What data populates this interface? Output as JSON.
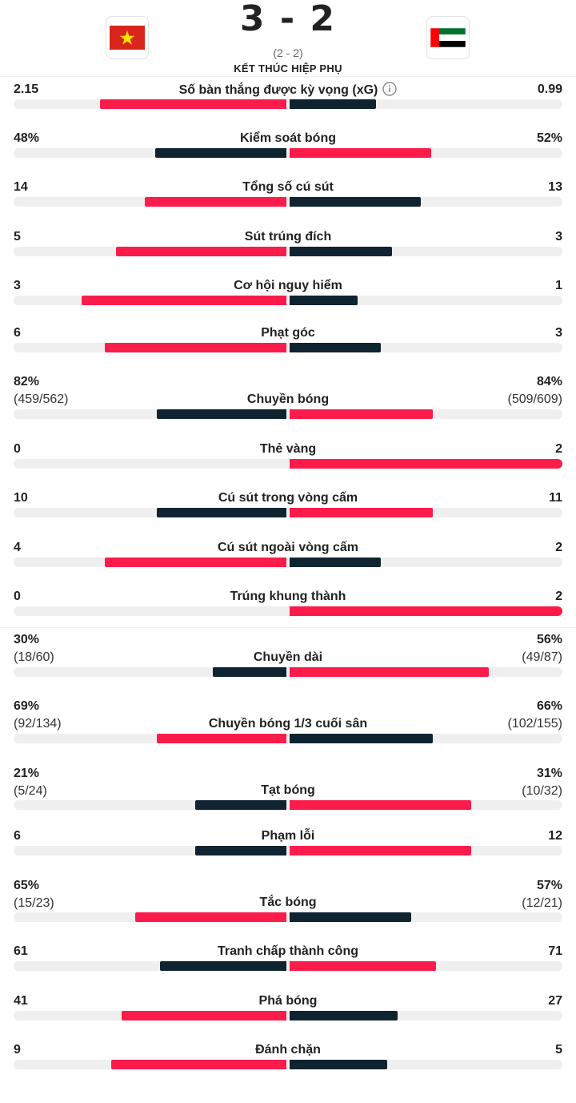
{
  "match": {
    "score": "3 - 2",
    "ht_score": "(2 - 2)",
    "status": "KẾT THÚC HIỆP PHỤ",
    "home_flag": "vietnam-flag",
    "away_flag": "uae-flag"
  },
  "colors": {
    "red": "#fb1c4b",
    "dark": "#0f2430",
    "track": "#efefef"
  },
  "stats": [
    {
      "label": "Số bàn thắng được kỳ vọng (xG)",
      "home": "2.15",
      "away": "0.99",
      "home_val": 2.15,
      "away_val": 0.99,
      "home_color": "red",
      "away_color": "dark",
      "info_icon": "info-icon"
    },
    {
      "label": "Kiểm soát bóng",
      "home": "48%",
      "away": "52%",
      "home_val": 48,
      "away_val": 52,
      "home_color": "dark",
      "away_color": "red"
    },
    {
      "label": "Tổng số cú sút",
      "home": "14",
      "away": "13",
      "home_val": 14,
      "away_val": 13,
      "home_color": "red",
      "away_color": "dark"
    },
    {
      "label": "Sút trúng đích",
      "home": "5",
      "away": "3",
      "home_val": 5,
      "away_val": 3,
      "home_color": "red",
      "away_color": "dark"
    },
    {
      "label": "Cơ hội nguy hiểm",
      "home": "3",
      "away": "1",
      "home_val": 3,
      "away_val": 1,
      "home_color": "red",
      "away_color": "dark"
    },
    {
      "label": "Phạt góc",
      "home": "6",
      "away": "3",
      "home_val": 6,
      "away_val": 3,
      "home_color": "red",
      "away_color": "dark"
    },
    {
      "label": "Chuyền bóng",
      "home": "82%",
      "away": "84%",
      "home_sub": "(459/562)",
      "away_sub": "(509/609)",
      "home_val": 459,
      "away_val": 509,
      "home_color": "dark",
      "away_color": "red"
    },
    {
      "label": "Thẻ vàng",
      "home": "0",
      "away": "2",
      "home_val": 0,
      "away_val": 2,
      "home_color": "red",
      "away_color": "red"
    },
    {
      "label": "Cú sút trong vòng cấm",
      "home": "10",
      "away": "11",
      "home_val": 10,
      "away_val": 11,
      "home_color": "dark",
      "away_color": "red"
    },
    {
      "label": "Cú sút ngoài vòng cấm",
      "home": "4",
      "away": "2",
      "home_val": 4,
      "away_val": 2,
      "home_color": "red",
      "away_color": "dark"
    },
    {
      "label": "Trúng khung thành",
      "home": "0",
      "away": "2",
      "home_val": 0,
      "away_val": 2,
      "home_color": "red",
      "away_color": "red"
    },
    {
      "label": "Chuyền dài",
      "home": "30%",
      "away": "56%",
      "home_sub": "(18/60)",
      "away_sub": "(49/87)",
      "home_val": 18,
      "away_val": 49,
      "home_color": "dark",
      "away_color": "red"
    },
    {
      "label": "Chuyền bóng 1/3 cuối sân",
      "home": "69%",
      "away": "66%",
      "home_sub": "(92/134)",
      "away_sub": "(102/155)",
      "home_val": 92,
      "away_val": 102,
      "home_color": "red",
      "away_color": "dark"
    },
    {
      "label": "Tạt bóng",
      "home": "21%",
      "away": "31%",
      "home_sub": "(5/24)",
      "away_sub": "(10/32)",
      "home_val": 5,
      "away_val": 10,
      "home_color": "dark",
      "away_color": "red"
    },
    {
      "label": "Phạm lỗi",
      "home": "6",
      "away": "12",
      "home_val": 6,
      "away_val": 12,
      "home_color": "dark",
      "away_color": "red"
    },
    {
      "label": "Tắc bóng",
      "home": "65%",
      "away": "57%",
      "home_sub": "(15/23)",
      "away_sub": "(12/21)",
      "home_val": 15,
      "away_val": 12,
      "home_color": "red",
      "away_color": "dark"
    },
    {
      "label": "Tranh chấp thành công",
      "home": "61",
      "away": "71",
      "home_val": 61,
      "away_val": 71,
      "home_color": "dark",
      "away_color": "red"
    },
    {
      "label": "Phá bóng",
      "home": "41",
      "away": "27",
      "home_val": 41,
      "away_val": 27,
      "home_color": "red",
      "away_color": "dark"
    },
    {
      "label": "Đánh chặn",
      "home": "9",
      "away": "5",
      "home_val": 9,
      "away_val": 5,
      "home_color": "red",
      "away_color": "dark"
    }
  ]
}
